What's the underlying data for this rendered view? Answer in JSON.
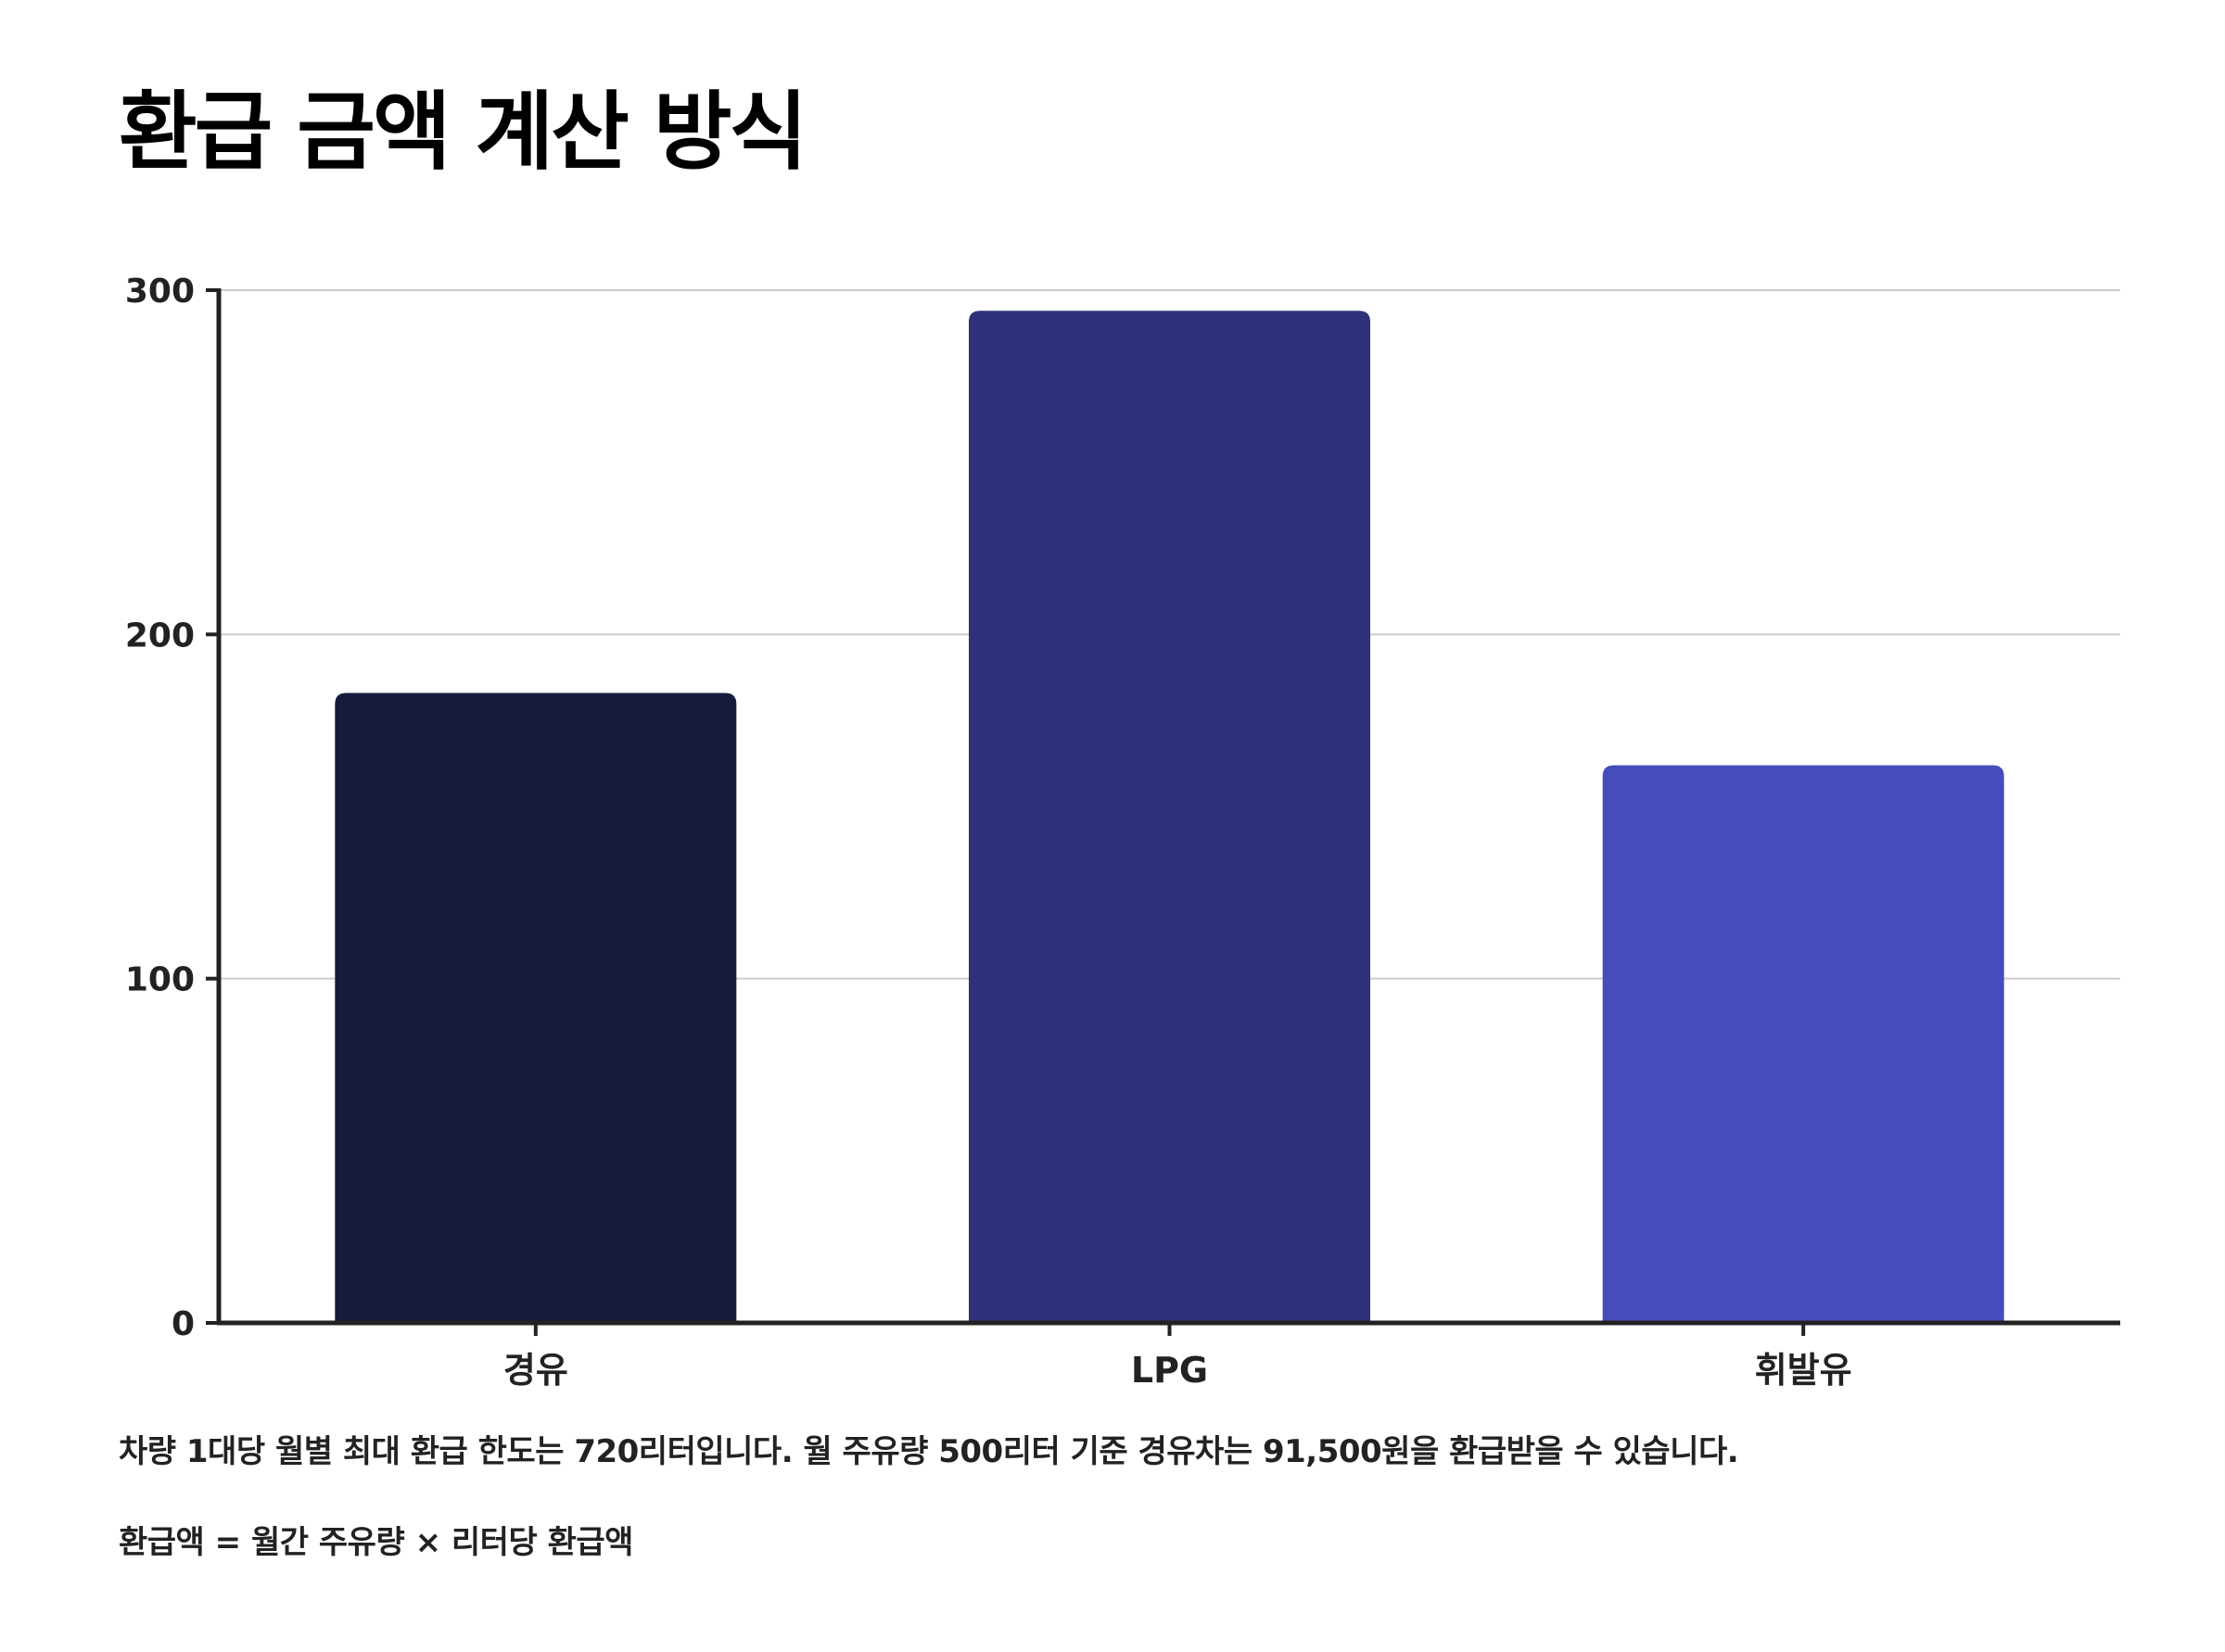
{
  "title": "환급 금액 계산 방식",
  "notes": {
    "limit": "차량 1대당 월별 최대 환급 한도는 720리터입니다. 월 주유량 500리터 기준 경유차는 91,500원을 환급받을 수 있습니다.",
    "formula": "환급액 = 월간 주유량 × 리터당 환급액"
  },
  "chart_data": {
    "type": "bar",
    "categories": [
      "경유",
      "LPG",
      "휘발유"
    ],
    "values": [
      183,
      294,
      162
    ],
    "colors": [
      "#161a3b",
      "#2e327a",
      "#464dba"
    ],
    "ylim": [
      0,
      300
    ],
    "yticks": [
      0,
      100,
      200,
      300
    ],
    "grid": true,
    "xlabel": "",
    "ylabel": ""
  }
}
